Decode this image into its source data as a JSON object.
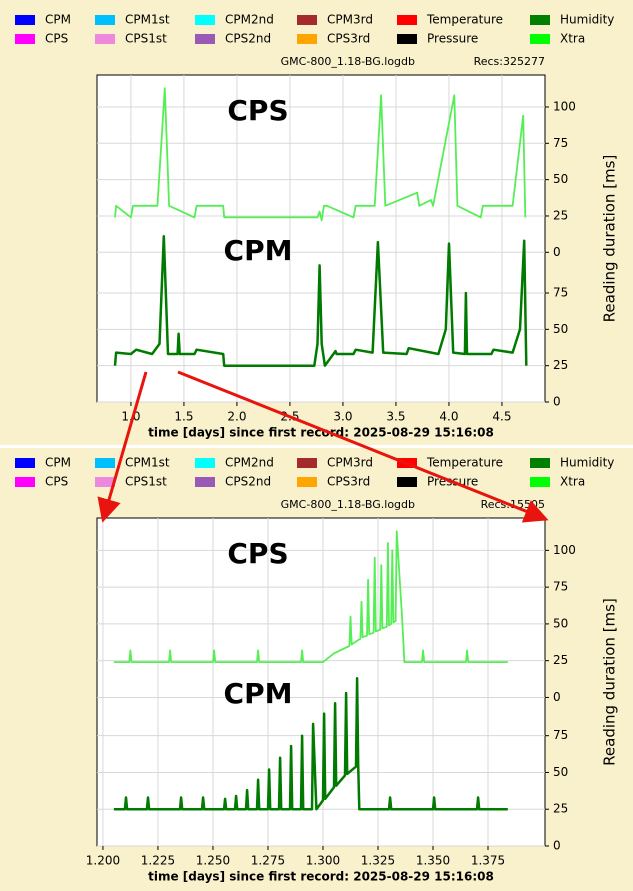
{
  "chart_data": [
    {
      "type": "line",
      "legend": [
        {
          "name": "CPM",
          "color": "#0000ff"
        },
        {
          "name": "CPS",
          "color": "#ff00ff"
        },
        {
          "name": "CPM1st",
          "color": "#00bfff"
        },
        {
          "name": "CPS1st",
          "color": "#ee88dd"
        },
        {
          "name": "CPM2nd",
          "color": "#00ffff"
        },
        {
          "name": "CPS2nd",
          "color": "#9b59b6"
        },
        {
          "name": "CPM3rd",
          "color": "#a52a2a"
        },
        {
          "name": "CPS3rd",
          "color": "#ffa500"
        },
        {
          "name": "Temperature",
          "color": "#ff0000"
        },
        {
          "name": "Pressure",
          "color": "#000000"
        },
        {
          "name": "Humidity",
          "color": "#008000"
        },
        {
          "name": "Xtra",
          "color": "#00ff00"
        }
      ],
      "file": "GMC-800_1.18-BG.logdb",
      "recs": "Recs:325277",
      "xlabel": "time [days] since first record: 2025-08-29 15:16:08",
      "ylabel": "Reading duration [ms]",
      "annotations": [
        {
          "text": "CPS",
          "color": "#33ee33"
        },
        {
          "text": "CPM",
          "color": "#1a7f6e"
        }
      ],
      "xlim": [
        0.68,
        4.906
      ],
      "xticks": [
        {
          "value": 1,
          "label": "1.0"
        },
        1.5,
        {
          "value": 2,
          "label": "2.0"
        },
        2.5,
        {
          "value": 3,
          "label": "3.0"
        },
        3.5,
        {
          "value": 4,
          "label": "4.0"
        },
        4.5
      ],
      "ylim": [
        0,
        225
      ],
      "yticks": [
        0,
        25,
        50,
        75
      ],
      "y2lim": [
        -103,
        122
      ],
      "y2ticks": [
        0,
        25,
        50,
        75,
        100
      ],
      "grid": true,
      "series": [
        {
          "color": "#007a00",
          "x": [
            0.85,
            0.86,
            1.0,
            1.05,
            1.2,
            1.27,
            1.31,
            1.35,
            1.44,
            1.45,
            1.46,
            1.6,
            1.62,
            1.87,
            1.88,
            2.73,
            2.76,
            2.78,
            2.8,
            2.83,
            2.93,
            2.94,
            3.1,
            3.12,
            3.28,
            3.33,
            3.38,
            3.6,
            3.62,
            3.9,
            3.97,
            4.0,
            4.04,
            4.15,
            4.16,
            4.17,
            4.18,
            4.4,
            4.42,
            4.6,
            4.67,
            4.71,
            4.73
          ],
          "values": [
            25,
            34,
            33,
            36,
            33,
            40,
            114,
            33,
            33,
            47,
            33,
            33,
            36,
            33,
            25,
            25,
            40,
            94,
            40,
            25,
            35,
            33,
            33,
            36,
            34,
            110,
            34,
            33,
            37,
            33,
            50,
            109,
            34,
            33,
            75,
            33,
            33,
            33,
            36,
            34,
            50,
            111,
            25
          ]
        },
        {
          "color": "#55ee55",
          "axis": "y2",
          "x": [
            0.85,
            0.86,
            1.0,
            1.02,
            1.25,
            1.32,
            1.36,
            1.6,
            1.62,
            1.87,
            1.88,
            2.76,
            2.78,
            2.8,
            2.82,
            2.85,
            3.1,
            3.12,
            3.3,
            3.36,
            3.4,
            3.7,
            3.72,
            3.83,
            3.85,
            4.05,
            4.08,
            4.3,
            4.32,
            4.6,
            4.7,
            4.72
          ],
          "values": [
            24,
            32,
            24,
            32,
            32,
            113,
            32,
            24,
            32,
            32,
            24,
            24,
            28,
            22,
            32,
            32,
            24,
            32,
            32,
            108,
            32,
            41,
            32,
            36,
            32,
            108,
            32,
            24,
            32,
            32,
            94,
            24
          ]
        }
      ]
    },
    {
      "type": "line",
      "legend": [
        {
          "name": "CPM",
          "color": "#0000ff"
        },
        {
          "name": "CPS",
          "color": "#ff00ff"
        },
        {
          "name": "CPM1st",
          "color": "#00bfff"
        },
        {
          "name": "CPS1st",
          "color": "#ee88dd"
        },
        {
          "name": "CPM2nd",
          "color": "#00ffff"
        },
        {
          "name": "CPS2nd",
          "color": "#9b59b6"
        },
        {
          "name": "CPM3rd",
          "color": "#a52a2a"
        },
        {
          "name": "CPS3rd",
          "color": "#ffa500"
        },
        {
          "name": "Temperature",
          "color": "#ff0000"
        },
        {
          "name": "Pressure",
          "color": "#000000"
        },
        {
          "name": "Humidity",
          "color": "#008000"
        },
        {
          "name": "Xtra",
          "color": "#00ff00"
        }
      ],
      "file": "GMC-800_1.18-BG.logdb",
      "recs": "Recs:15505",
      "xlabel": "time [days] since first record: 2025-08-29 15:16:08",
      "ylabel": "Reading duration [ms]",
      "annotations": [
        {
          "text": "CPS",
          "color": "#33ee33"
        },
        {
          "text": "CPM",
          "color": "#1a7f6e"
        }
      ],
      "xlim": [
        1.1973,
        1.4009
      ],
      "xticks": [
        {
          "value": 1.2,
          "label": "1.200"
        },
        {
          "value": 1.225,
          "label": "1.225"
        },
        {
          "value": 1.25,
          "label": "1.250"
        },
        {
          "value": 1.275,
          "label": "1.275"
        },
        {
          "value": 1.3,
          "label": "1.300"
        },
        {
          "value": 1.325,
          "label": "1.325"
        },
        {
          "value": 1.35,
          "label": "1.350"
        },
        {
          "value": 1.375,
          "label": "1.375"
        }
      ],
      "ylim": [
        0,
        223
      ],
      "yticks": [
        0,
        25,
        50,
        75
      ],
      "y2lim": [
        -101,
        122
      ],
      "y2ticks": [
        0,
        25,
        50,
        75,
        100
      ],
      "grid": true,
      "series": [
        {
          "color": "#007a00",
          "x": [
            1.205,
            1.21,
            1.2105,
            1.211,
            1.22,
            1.2205,
            1.221,
            1.235,
            1.2355,
            1.236,
            1.245,
            1.2455,
            1.246,
            1.255,
            1.2555,
            1.256,
            1.26,
            1.2605,
            1.261,
            1.265,
            1.2655,
            1.266,
            1.27,
            1.2705,
            1.271,
            1.275,
            1.2755,
            1.276,
            1.28,
            1.2805,
            1.281,
            1.285,
            1.2855,
            1.286,
            1.29,
            1.2905,
            1.291,
            1.295,
            1.2955,
            1.297,
            1.3,
            1.3005,
            1.301,
            1.305,
            1.3055,
            1.306,
            1.31,
            1.3105,
            1.311,
            1.315,
            1.3155,
            1.316,
            1.3165,
            1.33,
            1.3305,
            1.331,
            1.35,
            1.3505,
            1.351,
            1.37,
            1.3705,
            1.371,
            1.384
          ],
          "values": [
            25,
            25,
            33,
            25,
            25,
            33,
            25,
            25,
            33,
            25,
            25,
            33,
            25,
            25,
            32,
            25,
            25,
            34,
            25,
            25,
            38,
            25,
            25,
            45,
            25,
            25,
            52,
            25,
            25,
            60,
            25,
            25,
            68,
            25,
            25,
            75,
            25,
            25,
            83,
            25,
            31,
            90,
            32,
            40,
            97,
            41,
            48,
            104,
            49,
            54,
            114,
            55,
            25,
            25,
            33,
            25,
            25,
            33,
            25,
            25,
            33,
            25,
            25
          ]
        },
        {
          "color": "#55ee55",
          "axis": "y2",
          "x": [
            1.205,
            1.212,
            1.2125,
            1.213,
            1.23,
            1.2305,
            1.231,
            1.25,
            1.2505,
            1.251,
            1.27,
            1.2705,
            1.271,
            1.29,
            1.2905,
            1.291,
            1.3,
            1.305,
            1.312,
            1.3125,
            1.313,
            1.317,
            1.3175,
            1.318,
            1.32,
            1.3205,
            1.321,
            1.323,
            1.3235,
            1.324,
            1.326,
            1.3265,
            1.327,
            1.329,
            1.3295,
            1.33,
            1.331,
            1.3315,
            1.332,
            1.333,
            1.3335,
            1.336,
            1.337,
            1.345,
            1.3455,
            1.346,
            1.365,
            1.3655,
            1.366,
            1.384
          ],
          "values": [
            24,
            24,
            32,
            24,
            24,
            32,
            24,
            24,
            32,
            24,
            24,
            32,
            24,
            24,
            32,
            24,
            24,
            30,
            35,
            55,
            36,
            40,
            65,
            41,
            42,
            80,
            43,
            44,
            95,
            45,
            46,
            90,
            47,
            48,
            105,
            49,
            50,
            100,
            51,
            52,
            113,
            53,
            24,
            24,
            32,
            24,
            24,
            32,
            24,
            24
          ]
        }
      ]
    }
  ]
}
